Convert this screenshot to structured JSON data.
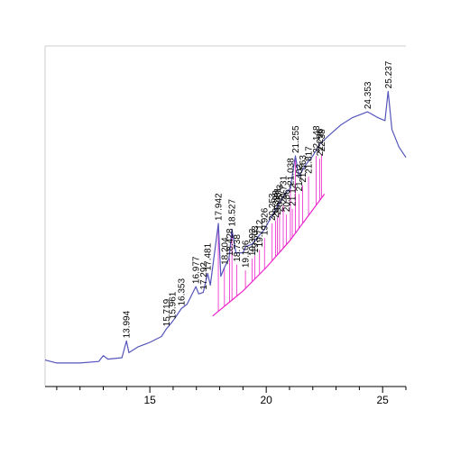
{
  "chart_data": {
    "type": "line",
    "title": "",
    "xlabel": "",
    "ylabel": "",
    "xlim": [
      10.5,
      26
    ],
    "ylim": [
      0,
      100
    ],
    "x_ticks": [
      15,
      20,
      25
    ],
    "x_tick_labels": [
      "15",
      "20",
      "25"
    ],
    "grid": false,
    "colors": {
      "trace": "#5555bb",
      "integration": "#ee22cc",
      "axis": "#000000"
    },
    "trace": [
      [
        10.5,
        3.5
      ],
      [
        11.0,
        2.5
      ],
      [
        12.0,
        2.5
      ],
      [
        12.8,
        3.0
      ],
      [
        13.0,
        5.0
      ],
      [
        13.2,
        3.8
      ],
      [
        13.8,
        4.3
      ],
      [
        13.994,
        10.0
      ],
      [
        14.1,
        6.0
      ],
      [
        14.5,
        8.0
      ],
      [
        15.0,
        9.5
      ],
      [
        15.5,
        11.5
      ],
      [
        15.7,
        14.0
      ],
      [
        15.961,
        16.5
      ],
      [
        16.1,
        18.0
      ],
      [
        16.353,
        21.0
      ],
      [
        16.6,
        22.5
      ],
      [
        16.977,
        28.5
      ],
      [
        17.1,
        26.0
      ],
      [
        17.292,
        26.5
      ],
      [
        17.481,
        33.0
      ],
      [
        17.6,
        29.0
      ],
      [
        17.942,
        50.0
      ],
      [
        18.05,
        32.0
      ],
      [
        18.204,
        35.0
      ],
      [
        18.4,
        38.0
      ],
      [
        18.527,
        48.0
      ],
      [
        18.7,
        40.0
      ],
      [
        19.0,
        40.0
      ],
      [
        19.106,
        42.0
      ],
      [
        19.4,
        43.0
      ],
      [
        19.6,
        45.0
      ],
      [
        19.926,
        48.0
      ],
      [
        20.2,
        52.0
      ],
      [
        20.5,
        56.0
      ],
      [
        20.8,
        60.0
      ],
      [
        21.038,
        62.0
      ],
      [
        21.255,
        73.0
      ],
      [
        21.4,
        66.0
      ],
      [
        21.7,
        70.0
      ],
      [
        22.0,
        73.0
      ],
      [
        22.3,
        77.0
      ],
      [
        22.7,
        80.0
      ],
      [
        23.2,
        83.5
      ],
      [
        23.7,
        86.0
      ],
      [
        24.353,
        88.0
      ],
      [
        24.8,
        86.0
      ],
      [
        25.1,
        85.0
      ],
      [
        25.237,
        95.0
      ],
      [
        25.4,
        82.0
      ],
      [
        25.7,
        76.0
      ],
      [
        26.0,
        72.5
      ]
    ],
    "integration_baseline": [
      [
        17.7,
        18.5
      ],
      [
        19.0,
        27.0
      ],
      [
        20.0,
        35.0
      ],
      [
        21.0,
        44.0
      ],
      [
        22.5,
        60.0
      ]
    ],
    "peak_labels": [
      {
        "x": 13.994,
        "y": 10.0,
        "label": "13.994"
      },
      {
        "x": 15.719,
        "y": 14.0,
        "label": "15.719"
      },
      {
        "x": 15.961,
        "y": 16.5,
        "label": "15.961"
      },
      {
        "x": 16.353,
        "y": 21.0,
        "label": "16.353"
      },
      {
        "x": 16.977,
        "y": 28.5,
        "label": "16.977"
      },
      {
        "x": 17.292,
        "y": 26.5,
        "label": "17.292"
      },
      {
        "x": 17.481,
        "y": 33.0,
        "label": "17.481"
      },
      {
        "x": 17.942,
        "y": 50.0,
        "label": "17.942"
      },
      {
        "x": 18.204,
        "y": 35.0,
        "label": "18.204"
      },
      {
        "x": 18.428,
        "y": 38.0,
        "label": "18.428"
      },
      {
        "x": 18.527,
        "y": 48.0,
        "label": "18.527"
      },
      {
        "x": 18.738,
        "y": 36.0,
        "label": "18.738"
      },
      {
        "x": 19.106,
        "y": 34.0,
        "label": "19.106"
      },
      {
        "x": 19.393,
        "y": 38.0,
        "label": "19.393"
      },
      {
        "x": 19.503,
        "y": 39.0,
        "label": "19.503"
      },
      {
        "x": 19.712,
        "y": 41.0,
        "label": "19.712"
      },
      {
        "x": 19.926,
        "y": 45.0,
        "label": "19.926"
      },
      {
        "x": 20.253,
        "y": 50.0,
        "label": "20.253"
      },
      {
        "x": 20.398,
        "y": 51.0,
        "label": "20.398"
      },
      {
        "x": 20.481,
        "y": 52.0,
        "label": "20.481"
      },
      {
        "x": 20.573,
        "y": 53.0,
        "label": "20.573"
      },
      {
        "x": 20.731,
        "y": 56.0,
        "label": "20.731"
      },
      {
        "x": 20.86,
        "y": 53.0,
        "label": "20.86"
      },
      {
        "x": 21.038,
        "y": 62.0,
        "label": "21.038"
      },
      {
        "x": 21.12,
        "y": 55.0,
        "label": "21.12"
      },
      {
        "x": 21.255,
        "y": 73.0,
        "label": "21.255"
      },
      {
        "x": 21.403,
        "y": 60.0,
        "label": "21.403"
      },
      {
        "x": 21.563,
        "y": 63.0,
        "label": "21.563"
      },
      {
        "x": 21.817,
        "y": 66.0,
        "label": "21.817"
      },
      {
        "x": 22.148,
        "y": 73.0,
        "label": "22.148"
      },
      {
        "x": 22.296,
        "y": 72.0,
        "label": "22.296"
      },
      {
        "x": 22.38,
        "y": 73.5,
        "label": "22.38"
      },
      {
        "x": 24.353,
        "y": 88.0,
        "label": "24.353"
      },
      {
        "x": 25.237,
        "y": 95.0,
        "label": "25.237"
      }
    ]
  }
}
